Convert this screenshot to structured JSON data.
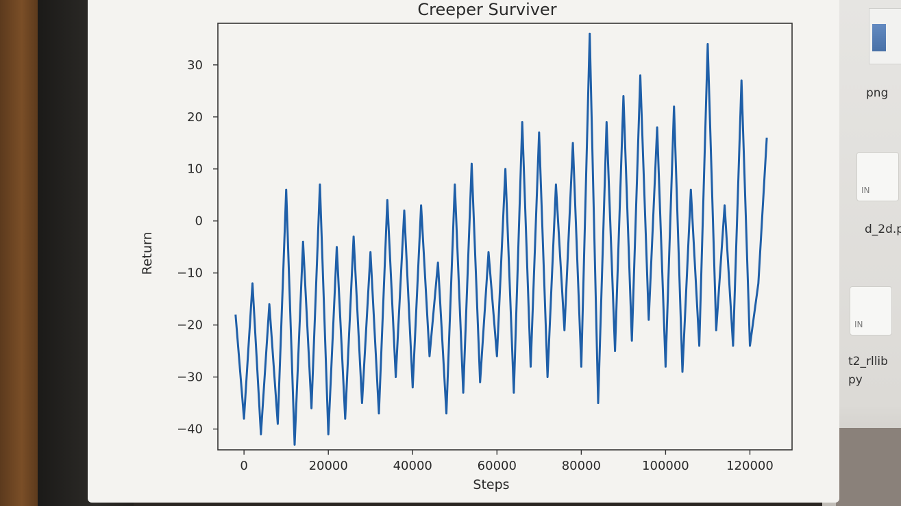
{
  "desktop": {
    "labels": [
      "png",
      "IN",
      "d_2d.p",
      "IN",
      "t2_rllib",
      "py"
    ]
  },
  "chart_data": {
    "type": "line",
    "title": "Creeper Surviver",
    "xlabel": "Steps",
    "ylabel": "Return",
    "xlim": [
      -6200,
      130000
    ],
    "ylim": [
      -44,
      38
    ],
    "xticks": [
      0,
      20000,
      40000,
      60000,
      80000,
      100000,
      120000
    ],
    "xtick_labels": [
      "0",
      "20000",
      "40000",
      "60000",
      "80000",
      "100000",
      "120000"
    ],
    "yticks": [
      30,
      20,
      10,
      0,
      -10,
      -20,
      -30,
      -40
    ],
    "ytick_labels": [
      "30",
      "20",
      "10",
      "0",
      "−10",
      "−20",
      "−30",
      "−40"
    ],
    "grid": false,
    "line_color": "#1f5fa8",
    "series": [
      {
        "x": [
          -2000,
          0,
          2000,
          4000,
          6000,
          8000,
          10000,
          12000,
          14000,
          16000,
          18000,
          20000,
          22000,
          24000,
          26000,
          28000,
          30000,
          32000,
          34000,
          36000,
          38000,
          40000,
          42000,
          44000,
          46000,
          48000,
          50000,
          52000,
          54000,
          56000,
          58000,
          60000,
          62000,
          64000,
          66000,
          68000,
          70000,
          72000,
          74000,
          76000,
          78000,
          80000,
          82000,
          84000,
          86000,
          88000,
          90000,
          92000,
          94000,
          96000,
          98000,
          100000,
          102000,
          104000,
          106000,
          108000,
          110000,
          112000,
          114000,
          116000,
          118000,
          120000,
          122000,
          124000
        ],
        "y": [
          -18,
          -38,
          -12,
          -41,
          -16,
          -39,
          6,
          -43,
          -4,
          -36,
          7,
          -41,
          -5,
          -38,
          -3,
          -35,
          -6,
          -37,
          4,
          -30,
          2,
          -32,
          3,
          -26,
          -8,
          -37,
          7,
          -33,
          11,
          -31,
          -6,
          -26,
          10,
          -33,
          19,
          -28,
          17,
          -30,
          7,
          -21,
          15,
          -28,
          36,
          -35,
          19,
          -25,
          24,
          -23,
          28,
          -19,
          18,
          -28,
          22,
          -29,
          6,
          -24,
          34,
          -21,
          3,
          -24,
          27,
          -24,
          -12,
          16
        ]
      }
    ]
  }
}
